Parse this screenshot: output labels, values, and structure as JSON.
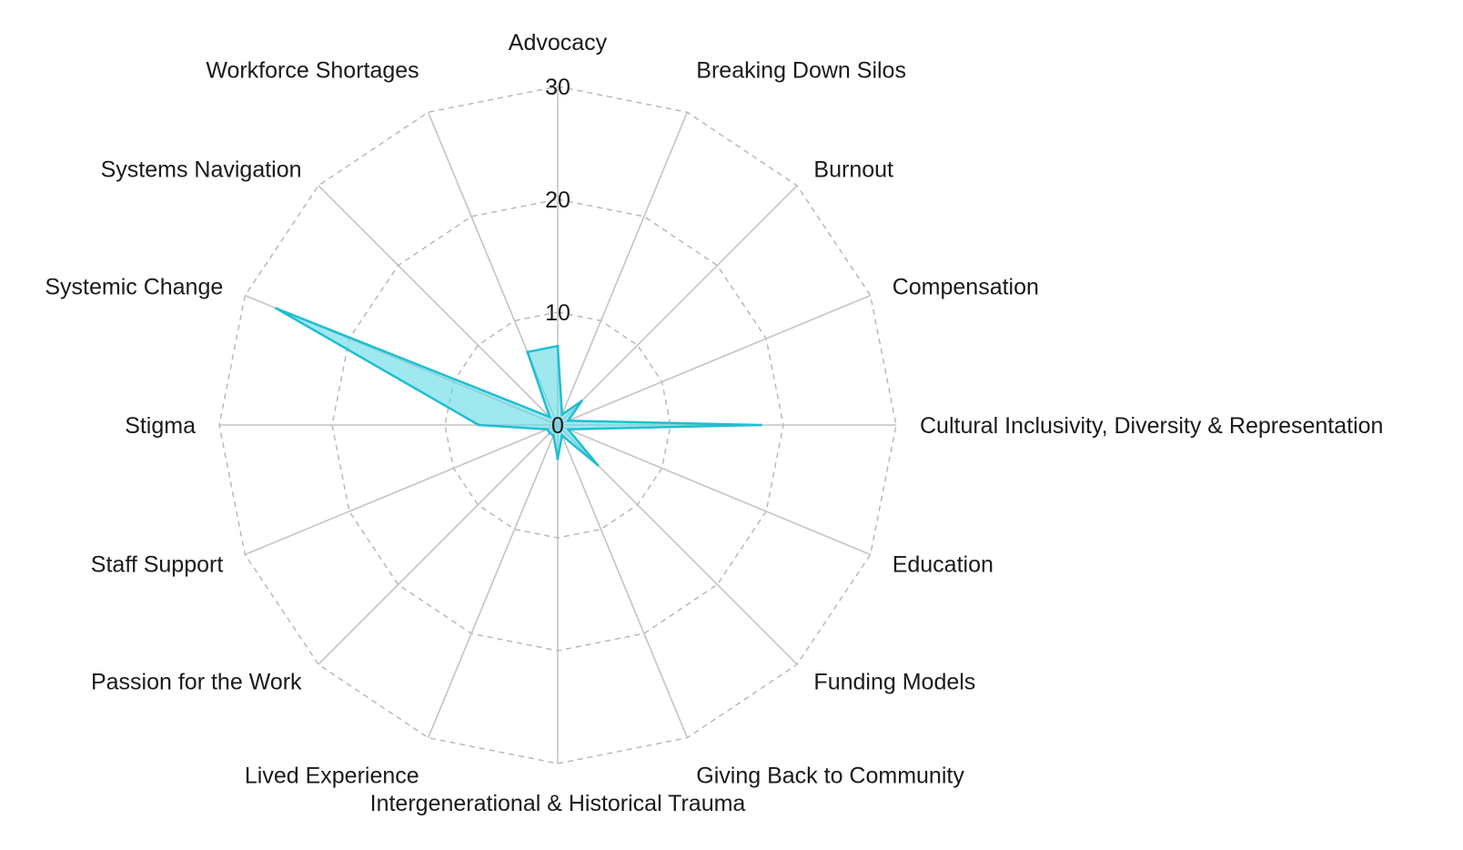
{
  "chart_data": {
    "type": "radar",
    "title": "",
    "categories": [
      "Advocacy",
      "Breaking Down Silos",
      "Burnout",
      "Compensation",
      "Cultural Inclusivity, Diversity & Representation",
      "Education",
      "Funding Models",
      "Giving Back to Community",
      "Intergenerational & Historical Trauma",
      "Lived Experience",
      "Passion for the Work",
      "Staff Support",
      "Stigma",
      "Systemic Change",
      "Systems Navigation",
      "Workforce Shortages"
    ],
    "series": [
      {
        "values": [
          7,
          1,
          3,
          1,
          18,
          1,
          5,
          1,
          3,
          1,
          1,
          1,
          7,
          27,
          1,
          7
        ]
      }
    ],
    "rlim": [
      0,
      30
    ],
    "ticks": [
      0,
      10,
      20,
      30
    ],
    "tick_labels": [
      "0",
      "10",
      "20",
      "30"
    ],
    "grid": true,
    "grid_style": "dashed polygon",
    "colors": {
      "series_line": "#1ebfd0",
      "series_fill": "#5fd8e6",
      "grid": "#b5b5b5",
      "spoke": "#c4c4c4",
      "text": "#1a1a1a"
    }
  }
}
